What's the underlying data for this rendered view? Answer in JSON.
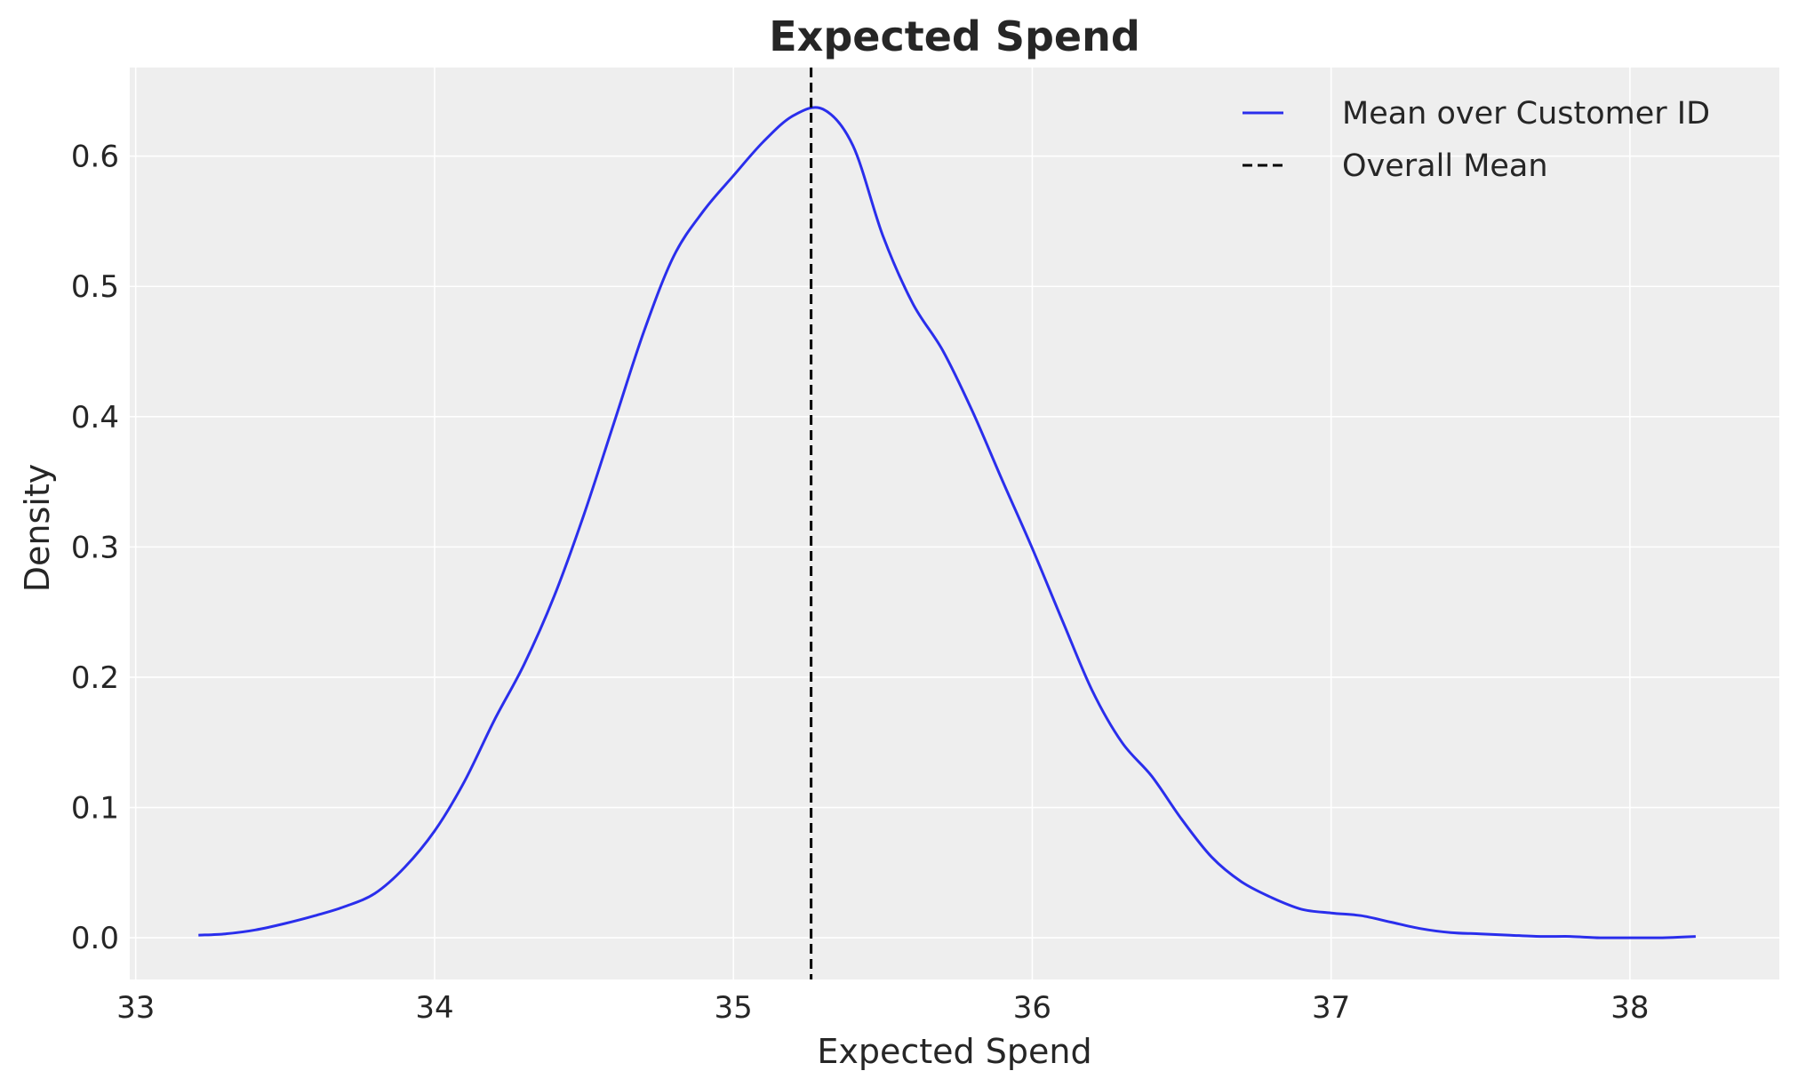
{
  "chart_data": {
    "type": "line",
    "title": "Expected Spend",
    "xlabel": "Expected Spend",
    "ylabel": "Density",
    "xlim": [
      32.98,
      38.5
    ],
    "ylim": [
      -0.032,
      0.668
    ],
    "xticks": [
      33,
      34,
      35,
      36,
      37,
      38
    ],
    "xtick_labels": [
      "33",
      "34",
      "35",
      "36",
      "37",
      "38"
    ],
    "yticks": [
      0.0,
      0.1,
      0.2,
      0.3,
      0.4,
      0.5,
      0.6
    ],
    "ytick_labels": [
      "0.0",
      "0.1",
      "0.2",
      "0.3",
      "0.4",
      "0.5",
      "0.6"
    ],
    "grid": true,
    "legend_position": "top-right",
    "series": [
      {
        "name": "Mean over Customer ID",
        "color": "#2a2eec",
        "style": "solid",
        "x": [
          33.21,
          33.3,
          33.4,
          33.5,
          33.6,
          33.7,
          33.8,
          33.9,
          34.0,
          34.1,
          34.2,
          34.3,
          34.4,
          34.5,
          34.6,
          34.7,
          34.8,
          34.9,
          35.0,
          35.1,
          35.2,
          35.3,
          35.4,
          35.5,
          35.6,
          35.7,
          35.8,
          35.9,
          36.0,
          36.1,
          36.2,
          36.3,
          36.4,
          36.5,
          36.6,
          36.7,
          36.8,
          36.9,
          37.0,
          37.1,
          37.2,
          37.3,
          37.4,
          37.5,
          37.6,
          37.7,
          37.8,
          37.9,
          38.0,
          38.1,
          38.22
        ],
        "y": [
          0.002,
          0.003,
          0.006,
          0.011,
          0.017,
          0.024,
          0.034,
          0.054,
          0.082,
          0.12,
          0.167,
          0.21,
          0.262,
          0.325,
          0.395,
          0.465,
          0.523,
          0.558,
          0.585,
          0.611,
          0.631,
          0.636,
          0.608,
          0.539,
          0.487,
          0.451,
          0.404,
          0.351,
          0.299,
          0.244,
          0.19,
          0.15,
          0.124,
          0.091,
          0.062,
          0.043,
          0.031,
          0.022,
          0.019,
          0.017,
          0.012,
          0.007,
          0.004,
          0.003,
          0.002,
          0.001,
          0.001,
          0.0,
          0.0,
          0.0,
          0.001
        ]
      },
      {
        "name": "Overall Mean",
        "color": "#000000",
        "style": "dashed",
        "x_value": 35.26
      }
    ]
  }
}
